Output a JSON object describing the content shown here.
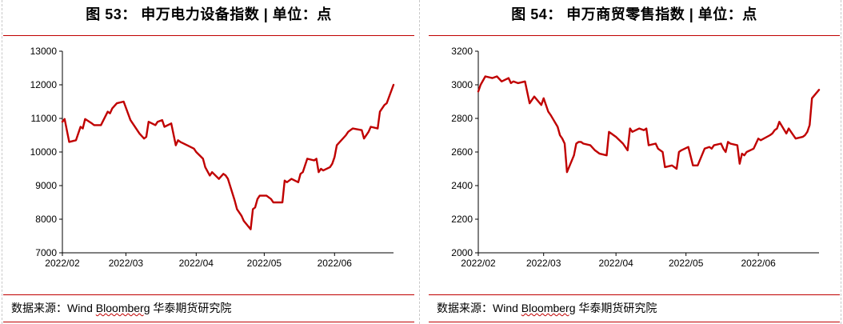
{
  "charts": [
    {
      "title": "图 53： 申万电力设备指数 | 单位：点",
      "source_prefix": "数据来源：Wind ",
      "source_underlined": "Bloomberg",
      "source_suffix": " 华泰期货研究院",
      "chart_data": {
        "type": "line",
        "title": "",
        "xlabel": "",
        "ylabel": "",
        "ylim": [
          7000,
          13000
        ],
        "yticks": [
          7000,
          8000,
          9000,
          10000,
          11000,
          12000,
          13000
        ],
        "xlim": [
          "2022-02-01",
          "2022-06-27"
        ],
        "xtick_labels": [
          "2022/02",
          "2022/03",
          "2022/04",
          "2022/05",
          "2022/06"
        ],
        "xtick_dates": [
          "2022-02-01",
          "2022-03-01",
          "2022-04-01",
          "2022-05-01",
          "2022-06-01"
        ],
        "grid": false,
        "legend": "none",
        "color": "#c00000",
        "series": [
          {
            "x": [
              "2022-02-01",
              "2022-02-02",
              "2022-02-04",
              "2022-02-07",
              "2022-02-09",
              "2022-02-10",
              "2022-02-11",
              "2022-02-14",
              "2022-02-15",
              "2022-02-18",
              "2022-02-21",
              "2022-02-22",
              "2022-02-23",
              "2022-02-25",
              "2022-02-28",
              "2022-03-03",
              "2022-03-07",
              "2022-03-09",
              "2022-03-10",
              "2022-03-11",
              "2022-03-14",
              "2022-03-15",
              "2022-03-17",
              "2022-03-18",
              "2022-03-21",
              "2022-03-23",
              "2022-03-24",
              "2022-03-25",
              "2022-03-28",
              "2022-03-31",
              "2022-04-01",
              "2022-04-04",
              "2022-04-05",
              "2022-04-07",
              "2022-04-08",
              "2022-04-11",
              "2022-04-13",
              "2022-04-14",
              "2022-04-15",
              "2022-04-18",
              "2022-04-19",
              "2022-04-21",
              "2022-04-22",
              "2022-04-25",
              "2022-04-26",
              "2022-04-27",
              "2022-04-28",
              "2022-04-29",
              "2022-05-02",
              "2022-05-03",
              "2022-05-04",
              "2022-05-05",
              "2022-05-09",
              "2022-05-10",
              "2022-05-11",
              "2022-05-12",
              "2022-05-13",
              "2022-05-16",
              "2022-05-17",
              "2022-05-18",
              "2022-05-19",
              "2022-05-20",
              "2022-05-23",
              "2022-05-24",
              "2022-05-25",
              "2022-05-26",
              "2022-05-27",
              "2022-05-30",
              "2022-05-31",
              "2022-06-01",
              "2022-06-02",
              "2022-06-06",
              "2022-06-07",
              "2022-06-08",
              "2022-06-09",
              "2022-06-13",
              "2022-06-14",
              "2022-06-16",
              "2022-06-17",
              "2022-06-20",
              "2022-06-21",
              "2022-06-22",
              "2022-06-23",
              "2022-06-24",
              "2022-06-27"
            ],
            "values": [
              10900,
              10980,
              10300,
              10350,
              10750,
              10700,
              10980,
              10850,
              10800,
              10800,
              11200,
              11150,
              11300,
              11450,
              11500,
              10950,
              10550,
              10400,
              10450,
              10900,
              10800,
              10900,
              10950,
              10750,
              10850,
              10200,
              10350,
              10300,
              10200,
              10100,
              10000,
              9800,
              9550,
              9300,
              9400,
              9200,
              9350,
              9300,
              9200,
              8550,
              8300,
              8100,
              7950,
              7700,
              8300,
              8350,
              8600,
              8700,
              8700,
              8650,
              8600,
              8500,
              8500,
              9150,
              9100,
              9150,
              9200,
              9100,
              9350,
              9400,
              9600,
              9800,
              9750,
              9800,
              9400,
              9500,
              9450,
              9550,
              9650,
              9850,
              10200,
              10500,
              10600,
              10650,
              10700,
              10650,
              10400,
              10600,
              10750,
              10700,
              11200,
              11300,
              11400,
              11450,
              12000
            ]
          }
        ]
      }
    },
    {
      "title": "图 54： 申万商贸零售指数 | 单位：点",
      "source_prefix": "数据来源：Wind ",
      "source_underlined": "Bloomberg",
      "source_suffix": " 华泰期货研究院",
      "chart_data": {
        "type": "line",
        "title": "",
        "xlabel": "",
        "ylabel": "",
        "ylim": [
          2000,
          3200
        ],
        "yticks": [
          2000,
          2200,
          2400,
          2600,
          2800,
          3000,
          3200
        ],
        "xlim": [
          "2022-02-01",
          "2022-06-27"
        ],
        "xtick_labels": [
          "2022/02",
          "2022/03",
          "2022/04",
          "2022/05",
          "2022/06"
        ],
        "xtick_dates": [
          "2022-02-01",
          "2022-03-01",
          "2022-04-01",
          "2022-05-01",
          "2022-06-01"
        ],
        "grid": false,
        "legend": "none",
        "color": "#c00000",
        "series": [
          {
            "x": [
              "2022-02-01",
              "2022-02-02",
              "2022-02-04",
              "2022-02-07",
              "2022-02-09",
              "2022-02-11",
              "2022-02-14",
              "2022-02-15",
              "2022-02-16",
              "2022-02-18",
              "2022-02-21",
              "2022-02-23",
              "2022-02-25",
              "2022-02-28",
              "2022-03-01",
              "2022-03-03",
              "2022-03-04",
              "2022-03-07",
              "2022-03-08",
              "2022-03-09",
              "2022-03-10",
              "2022-03-11",
              "2022-03-14",
              "2022-03-15",
              "2022-03-16",
              "2022-03-17",
              "2022-03-18",
              "2022-03-21",
              "2022-03-23",
              "2022-03-25",
              "2022-03-28",
              "2022-03-29",
              "2022-03-30",
              "2022-03-31",
              "2022-04-01",
              "2022-04-04",
              "2022-04-06",
              "2022-04-07",
              "2022-04-08",
              "2022-04-11",
              "2022-04-13",
              "2022-04-14",
              "2022-04-15",
              "2022-04-18",
              "2022-04-19",
              "2022-04-21",
              "2022-04-22",
              "2022-04-25",
              "2022-04-27",
              "2022-04-28",
              "2022-04-29",
              "2022-05-02",
              "2022-05-04",
              "2022-05-06",
              "2022-05-09",
              "2022-05-11",
              "2022-05-12",
              "2022-05-13",
              "2022-05-16",
              "2022-05-17",
              "2022-05-18",
              "2022-05-19",
              "2022-05-20",
              "2022-05-23",
              "2022-05-24",
              "2022-05-25",
              "2022-05-26",
              "2022-05-27",
              "2022-05-30",
              "2022-05-31",
              "2022-06-01",
              "2022-06-02",
              "2022-06-06",
              "2022-06-07",
              "2022-06-08",
              "2022-06-09",
              "2022-06-10",
              "2022-06-13",
              "2022-06-14",
              "2022-06-15",
              "2022-06-16",
              "2022-06-17",
              "2022-06-20",
              "2022-06-21",
              "2022-06-22",
              "2022-06-23",
              "2022-06-24",
              "2022-06-27"
            ],
            "values": [
              2960,
              3000,
              3050,
              3040,
              3050,
              3020,
              3040,
              3010,
              3020,
              3010,
              3020,
              2890,
              2930,
              2880,
              2920,
              2840,
              2820,
              2750,
              2700,
              2680,
              2650,
              2480,
              2580,
              2650,
              2660,
              2660,
              2650,
              2640,
              2610,
              2590,
              2580,
              2720,
              2710,
              2700,
              2690,
              2650,
              2610,
              2740,
              2720,
              2740,
              2730,
              2740,
              2640,
              2650,
              2620,
              2600,
              2510,
              2520,
              2500,
              2600,
              2610,
              2630,
              2520,
              2520,
              2620,
              2630,
              2620,
              2640,
              2650,
              2620,
              2600,
              2660,
              2650,
              2640,
              2530,
              2590,
              2580,
              2600,
              2620,
              2650,
              2680,
              2670,
              2700,
              2710,
              2730,
              2740,
              2780,
              2710,
              2740,
              2720,
              2700,
              2680,
              2690,
              2700,
              2720,
              2760,
              2920,
              2970
            ]
          }
        ]
      }
    }
  ]
}
